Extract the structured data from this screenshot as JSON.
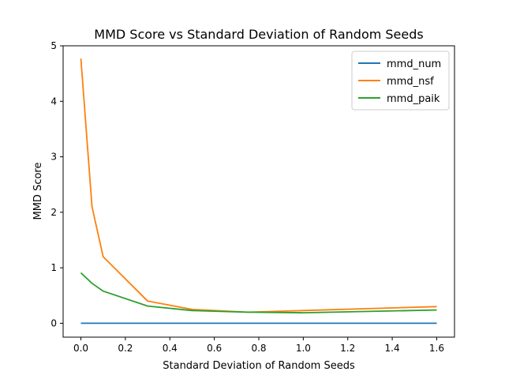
{
  "chart_data": {
    "type": "line",
    "title": "MMD Score vs Standard Deviation of Random Seeds",
    "xlabel": "Standard Deviation of Random Seeds",
    "ylabel": "MMD Score",
    "xlim": [
      -0.08,
      1.68
    ],
    "ylim": [
      -0.25,
      5.0
    ],
    "xticks": [
      0.0,
      0.2,
      0.4,
      0.6,
      0.8,
      1.0,
      1.2,
      1.4,
      1.6
    ],
    "xtick_labels": [
      "0.0",
      "0.2",
      "0.4",
      "0.6",
      "0.8",
      "1.0",
      "1.2",
      "1.4",
      "1.6"
    ],
    "yticks": [
      0,
      1,
      2,
      3,
      4,
      5
    ],
    "ytick_labels": [
      "0",
      "1",
      "2",
      "3",
      "4",
      "5"
    ],
    "grid": false,
    "legend_position": "top-right",
    "series": [
      {
        "name": "mmd_num",
        "color": "#1f77b4",
        "x": [
          0.0,
          0.05,
          0.1,
          0.3,
          0.5,
          0.75,
          1.0,
          1.6
        ],
        "y": [
          0.0,
          0.0,
          0.0,
          0.0,
          0.0,
          0.0,
          0.0,
          0.0
        ]
      },
      {
        "name": "mmd_nsf",
        "color": "#ff7f0e",
        "x": [
          0.0,
          0.05,
          0.1,
          0.3,
          0.5,
          0.75,
          1.0,
          1.6
        ],
        "y": [
          4.77,
          2.1,
          1.2,
          0.4,
          0.25,
          0.2,
          0.23,
          0.3
        ]
      },
      {
        "name": "mmd_paik",
        "color": "#2ca02c",
        "x": [
          0.0,
          0.05,
          0.1,
          0.3,
          0.5,
          0.75,
          1.0,
          1.6
        ],
        "y": [
          0.91,
          0.72,
          0.58,
          0.31,
          0.23,
          0.2,
          0.19,
          0.24
        ]
      }
    ]
  }
}
